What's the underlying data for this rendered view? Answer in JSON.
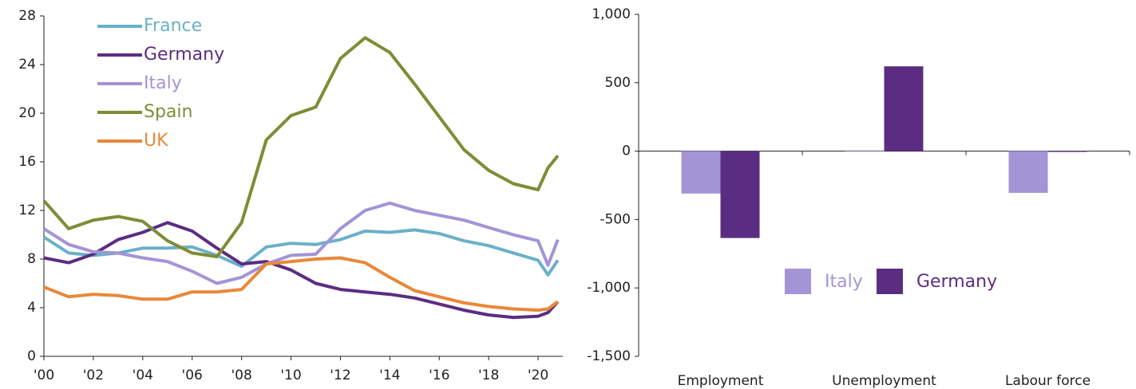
{
  "chart_data": [
    {
      "type": "line",
      "x": [
        2000,
        2001,
        2002,
        2003,
        2004,
        2005,
        2006,
        2007,
        2008,
        2009,
        2010,
        2011,
        2012,
        2013,
        2014,
        2015,
        2016,
        2017,
        2018,
        2019,
        2020,
        2020.4,
        2020.8
      ],
      "series": [
        {
          "name": "France",
          "color": "#6ab0c9",
          "values": [
            9.8,
            8.5,
            8.3,
            8.5,
            8.9,
            8.9,
            9.0,
            8.3,
            7.4,
            9.0,
            9.3,
            9.2,
            9.6,
            10.3,
            10.2,
            10.4,
            10.1,
            9.5,
            9.1,
            8.5,
            7.9,
            6.7,
            7.9
          ]
        },
        {
          "name": "Germany",
          "color": "#5b2d82",
          "values": [
            8.1,
            7.7,
            8.4,
            9.6,
            10.2,
            11.0,
            10.3,
            8.9,
            7.6,
            7.8,
            7.1,
            6.0,
            5.5,
            5.3,
            5.1,
            4.8,
            4.3,
            3.8,
            3.4,
            3.2,
            3.3,
            3.6,
            4.5
          ]
        },
        {
          "name": "Italy",
          "color": "#a394d6",
          "values": [
            10.5,
            9.2,
            8.6,
            8.5,
            8.1,
            7.8,
            7.0,
            6.0,
            6.5,
            7.6,
            8.3,
            8.4,
            10.5,
            12.0,
            12.6,
            12.0,
            11.6,
            11.2,
            10.6,
            10.0,
            9.5,
            7.5,
            9.6
          ]
        },
        {
          "name": "Spain",
          "color": "#7f8c36",
          "values": [
            12.8,
            10.5,
            11.2,
            11.5,
            11.1,
            9.5,
            8.5,
            8.2,
            11.0,
            17.8,
            19.8,
            20.5,
            24.5,
            26.2,
            25.0,
            22.4,
            19.7,
            17.0,
            15.3,
            14.2,
            13.7,
            15.5,
            16.5
          ]
        },
        {
          "name": "UK",
          "color": "#e8883a",
          "values": [
            5.7,
            4.9,
            5.1,
            5.0,
            4.7,
            4.7,
            5.3,
            5.3,
            5.5,
            7.6,
            7.8,
            8.0,
            8.1,
            7.7,
            6.5,
            5.4,
            4.9,
            4.4,
            4.1,
            3.9,
            3.8,
            3.9,
            4.5
          ]
        }
      ],
      "xlim": [
        2000,
        2021
      ],
      "xticks": [
        {
          "value": 2000,
          "label": "'00"
        },
        {
          "value": 2002,
          "label": "'02"
        },
        {
          "value": 2004,
          "label": "'04"
        },
        {
          "value": 2006,
          "label": "'06"
        },
        {
          "value": 2008,
          "label": "'08"
        },
        {
          "value": 2010,
          "label": "'10"
        },
        {
          "value": 2012,
          "label": "'12"
        },
        {
          "value": 2014,
          "label": "'14"
        },
        {
          "value": 2016,
          "label": "'16"
        },
        {
          "value": 2018,
          "label": "'18"
        },
        {
          "value": 2020,
          "label": "'20"
        }
      ],
      "ylim": [
        0,
        28
      ],
      "yticks": [
        0,
        4,
        8,
        12,
        16,
        20,
        24,
        28
      ]
    },
    {
      "type": "bar",
      "categories": [
        "Employment",
        "Unemployment",
        "Labour force"
      ],
      "series": [
        {
          "name": "Italy",
          "color": "#a394d6",
          "values": [
            -310,
            5,
            -305
          ]
        },
        {
          "name": "Germany",
          "color": "#5b2d82",
          "values": [
            -635,
            620,
            -5
          ]
        }
      ],
      "ylim": [
        -1500,
        1000
      ],
      "yticks": [
        {
          "value": 1000,
          "label": "1,000"
        },
        500,
        0,
        -500,
        {
          "value": -1000,
          "label": "-1,000"
        },
        {
          "value": -1500,
          "label": "-1,500"
        }
      ]
    }
  ]
}
